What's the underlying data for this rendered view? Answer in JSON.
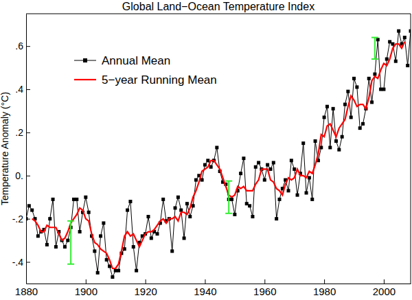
{
  "chart_data": {
    "type": "line",
    "title": "Global Land−Ocean Temperature Index",
    "ylabel": "Temperature Anomaly (°C)",
    "x": [
      1880,
      1881,
      1882,
      1883,
      1884,
      1885,
      1886,
      1887,
      1888,
      1889,
      1890,
      1891,
      1892,
      1893,
      1894,
      1895,
      1896,
      1897,
      1898,
      1899,
      1900,
      1901,
      1902,
      1903,
      1904,
      1905,
      1906,
      1907,
      1908,
      1909,
      1910,
      1911,
      1912,
      1913,
      1914,
      1915,
      1916,
      1917,
      1918,
      1919,
      1920,
      1921,
      1922,
      1923,
      1924,
      1925,
      1926,
      1927,
      1928,
      1929,
      1930,
      1931,
      1932,
      1933,
      1934,
      1935,
      1936,
      1937,
      1938,
      1939,
      1940,
      1941,
      1942,
      1943,
      1944,
      1945,
      1946,
      1947,
      1948,
      1949,
      1950,
      1951,
      1952,
      1953,
      1954,
      1955,
      1956,
      1957,
      1958,
      1959,
      1960,
      1961,
      1962,
      1963,
      1964,
      1965,
      1966,
      1967,
      1968,
      1969,
      1970,
      1971,
      1972,
      1973,
      1974,
      1975,
      1976,
      1977,
      1978,
      1979,
      1980,
      1981,
      1982,
      1983,
      1984,
      1985,
      1986,
      1987,
      1988,
      1989,
      1990,
      1991,
      1992,
      1993,
      1994,
      1995,
      1996,
      1997,
      1998,
      1999,
      2000,
      2001,
      2002,
      2003,
      2004,
      2005,
      2006,
      2007,
      2008,
      2009
    ],
    "series": [
      {
        "name": "Annual Mean",
        "color": "#000000",
        "marker": "square",
        "line_style": "solid",
        "values": [
          -0.2,
          -0.14,
          -0.16,
          -0.2,
          -0.28,
          -0.26,
          -0.25,
          -0.32,
          -0.2,
          -0.11,
          -0.33,
          -0.26,
          -0.3,
          -0.33,
          -0.3,
          -0.24,
          -0.11,
          -0.11,
          -0.26,
          -0.17,
          -0.1,
          -0.17,
          -0.28,
          -0.35,
          -0.45,
          -0.28,
          -0.22,
          -0.39,
          -0.42,
          -0.47,
          -0.44,
          -0.44,
          -0.36,
          -0.34,
          -0.16,
          -0.12,
          -0.33,
          -0.44,
          -0.31,
          -0.28,
          -0.27,
          -0.19,
          -0.29,
          -0.26,
          -0.27,
          -0.22,
          -0.11,
          -0.21,
          -0.2,
          -0.35,
          -0.15,
          -0.1,
          -0.16,
          -0.29,
          -0.13,
          -0.19,
          -0.14,
          -0.02,
          0,
          -0.02,
          0.05,
          0.07,
          0.04,
          0.07,
          0.13,
          0.02,
          -0.03,
          -0.04,
          -0.11,
          -0.11,
          -0.18,
          -0.07,
          0.01,
          0.08,
          -0.13,
          -0.14,
          -0.19,
          0.04,
          0.06,
          0.03,
          -0.02,
          0.05,
          0.03,
          0.06,
          -0.2,
          -0.11,
          -0.06,
          -0.02,
          -0.07,
          0.07,
          0.03,
          -0.09,
          0.01,
          0.15,
          -0.08,
          -0.01,
          -0.11,
          0.16,
          0.07,
          0.13,
          0.27,
          0.32,
          0.13,
          0.31,
          0.16,
          0.12,
          0.18,
          0.33,
          0.39,
          0.27,
          0.45,
          0.41,
          0.22,
          0.24,
          0.31,
          0.45,
          0.34,
          0.47,
          0.63,
          0.4,
          0.4,
          0.54,
          0.62,
          0.61,
          0.53,
          0.67,
          0.61,
          0.64,
          0.51,
          0.67
        ]
      },
      {
        "name": "5−year Running Mean",
        "color": "#ff0000",
        "marker": "none",
        "line_style": "solid",
        "values": [
          null,
          null,
          -0.2,
          -0.21,
          -0.23,
          -0.26,
          -0.26,
          -0.23,
          -0.24,
          -0.24,
          -0.24,
          -0.27,
          -0.3,
          -0.29,
          -0.26,
          -0.22,
          -0.2,
          -0.18,
          -0.15,
          -0.16,
          -0.2,
          -0.21,
          -0.27,
          -0.31,
          -0.32,
          -0.34,
          -0.35,
          -0.36,
          -0.39,
          -0.43,
          -0.43,
          -0.41,
          -0.35,
          -0.28,
          -0.26,
          -0.28,
          -0.27,
          -0.3,
          -0.33,
          -0.3,
          -0.27,
          -0.26,
          -0.26,
          -0.25,
          -0.23,
          -0.21,
          -0.2,
          -0.22,
          -0.2,
          -0.2,
          -0.19,
          -0.21,
          -0.17,
          -0.17,
          -0.18,
          -0.15,
          -0.1,
          -0.07,
          -0.03,
          0.02,
          0.03,
          0.04,
          0.07,
          0.07,
          0.05,
          0.03,
          -0.01,
          -0.05,
          -0.09,
          -0.1,
          -0.09,
          -0.05,
          -0.06,
          -0.05,
          -0.07,
          -0.07,
          -0.07,
          -0.04,
          -0.02,
          0.03,
          0.03,
          0.03,
          -0.02,
          -0.03,
          -0.06,
          -0.07,
          -0.09,
          -0.04,
          -0.01,
          -0.02,
          -0.01,
          0.03,
          0,
          0,
          -0.01,
          0.02,
          0.01,
          0.05,
          0.1,
          0.19,
          0.18,
          0.23,
          0.24,
          0.21,
          0.18,
          0.22,
          0.24,
          0.26,
          0.32,
          0.37,
          0.35,
          0.32,
          0.33,
          0.33,
          0.31,
          0.36,
          0.44,
          0.46,
          0.45,
          0.49,
          0.52,
          0.51,
          0.54,
          0.59,
          0.61,
          0.61,
          0.59,
          0.62,
          null,
          null
        ]
      }
    ],
    "error_bars": {
      "x": [
        1895,
        1948,
        1997
      ],
      "values": [
        -0.31,
        -0.1,
        0.59
      ],
      "errors": [
        0.1,
        0.075,
        0.05
      ],
      "color": "#33ee33"
    },
    "xlim": [
      1880,
      2009
    ],
    "ylim": [
      -0.5,
      0.75
    ],
    "xticks": [
      1880,
      1900,
      1920,
      1940,
      1960,
      1980,
      2000
    ],
    "yticks": [
      {
        "value": -0.4,
        "label": "-.4"
      },
      {
        "value": -0.2,
        "label": "-.2"
      },
      {
        "value": 0,
        "label": "0."
      },
      {
        "value": 0.2,
        "label": ".2"
      },
      {
        "value": 0.4,
        "label": ".4"
      },
      {
        "value": 0.6,
        "label": ".6"
      }
    ],
    "legend": "upper left",
    "grid": false
  }
}
